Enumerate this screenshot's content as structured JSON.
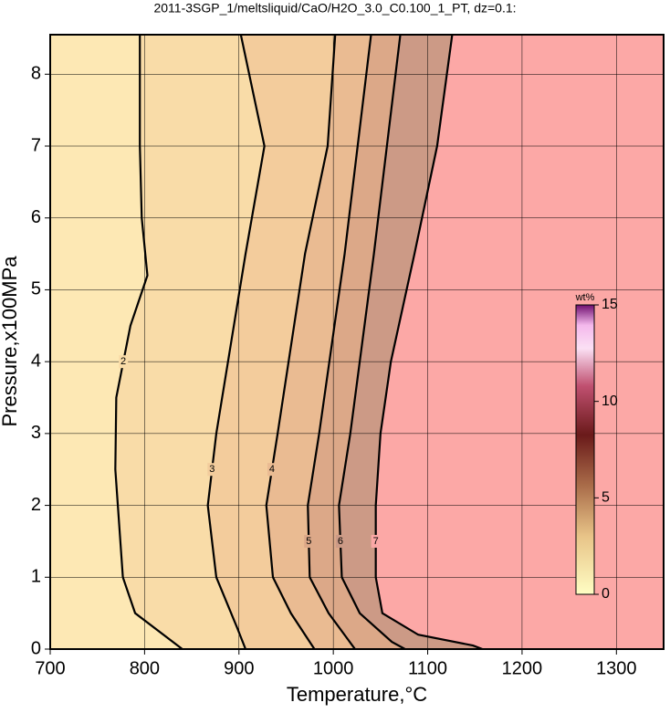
{
  "chart_data": {
    "type": "contour",
    "title": "2011-3SGP_1/meltsliquid/CaO/H2O_3.0_C0.100_1_PT, dz=0.1:",
    "x_label": "Temperature,°C",
    "y_label": "Pressure,x100MPa",
    "xlim": [
      700,
      1350
    ],
    "ylim": [
      0,
      8.55
    ],
    "xticks": [
      700,
      800,
      900,
      1000,
      1100,
      1200,
      1300
    ],
    "yticks": [
      0,
      1,
      2,
      3,
      4,
      5,
      6,
      7,
      8
    ],
    "grid": true,
    "series": [
      {
        "name": "2",
        "color": "#000000",
        "x": [
          840,
          790,
          777,
          769,
          770,
          785,
          803,
          797,
          795,
          795
        ],
        "y": [
          0,
          0.5,
          1,
          2.5,
          3.5,
          4.5,
          5.2,
          6,
          7,
          8.55
        ]
      },
      {
        "name": "3",
        "color": "#000000",
        "x": [
          907,
          898,
          876,
          867,
          876,
          907,
          927,
          902
        ],
        "y": [
          0,
          0.3,
          1,
          2,
          3,
          5.5,
          7,
          8.55
        ]
      },
      {
        "name": "4",
        "color": "#000000",
        "x": [
          980,
          955,
          936,
          929,
          941,
          970,
          994,
          1002
        ],
        "y": [
          0,
          0.5,
          1,
          2,
          3,
          5.5,
          7,
          8.55
        ]
      },
      {
        "name": "5",
        "color": "#000000",
        "x": [
          1023,
          995,
          975,
          973,
          985,
          1012,
          1040
        ],
        "y": [
          0,
          0.5,
          1,
          2,
          3,
          5.5,
          8.55
        ]
      },
      {
        "name": "6",
        "color": "#000000",
        "x": [
          1076,
          1062,
          1028,
          1009,
          1006,
          1018,
          1043,
          1071
        ],
        "y": [
          0,
          0.1,
          0.5,
          1,
          2,
          3,
          5.5,
          8.55
        ]
      },
      {
        "name": "7",
        "color": "#000000",
        "x": [
          1158,
          1148,
          1090,
          1052,
          1045,
          1045,
          1050,
          1061,
          1086,
          1110,
          1126
        ],
        "y": [
          0,
          0.05,
          0.2,
          0.5,
          1,
          2,
          3,
          4,
          5.5,
          7,
          8.55
        ]
      }
    ],
    "fills": [
      "#fde8b4",
      "#f9dca8",
      "#f3cc9c",
      "#eabb92",
      "#dca888",
      "#cc9a86",
      "#fca8a6"
    ],
    "colorbar": {
      "label": "wt%",
      "clim": [
        0,
        15
      ],
      "ticks": [
        0,
        5,
        10,
        15
      ]
    }
  }
}
